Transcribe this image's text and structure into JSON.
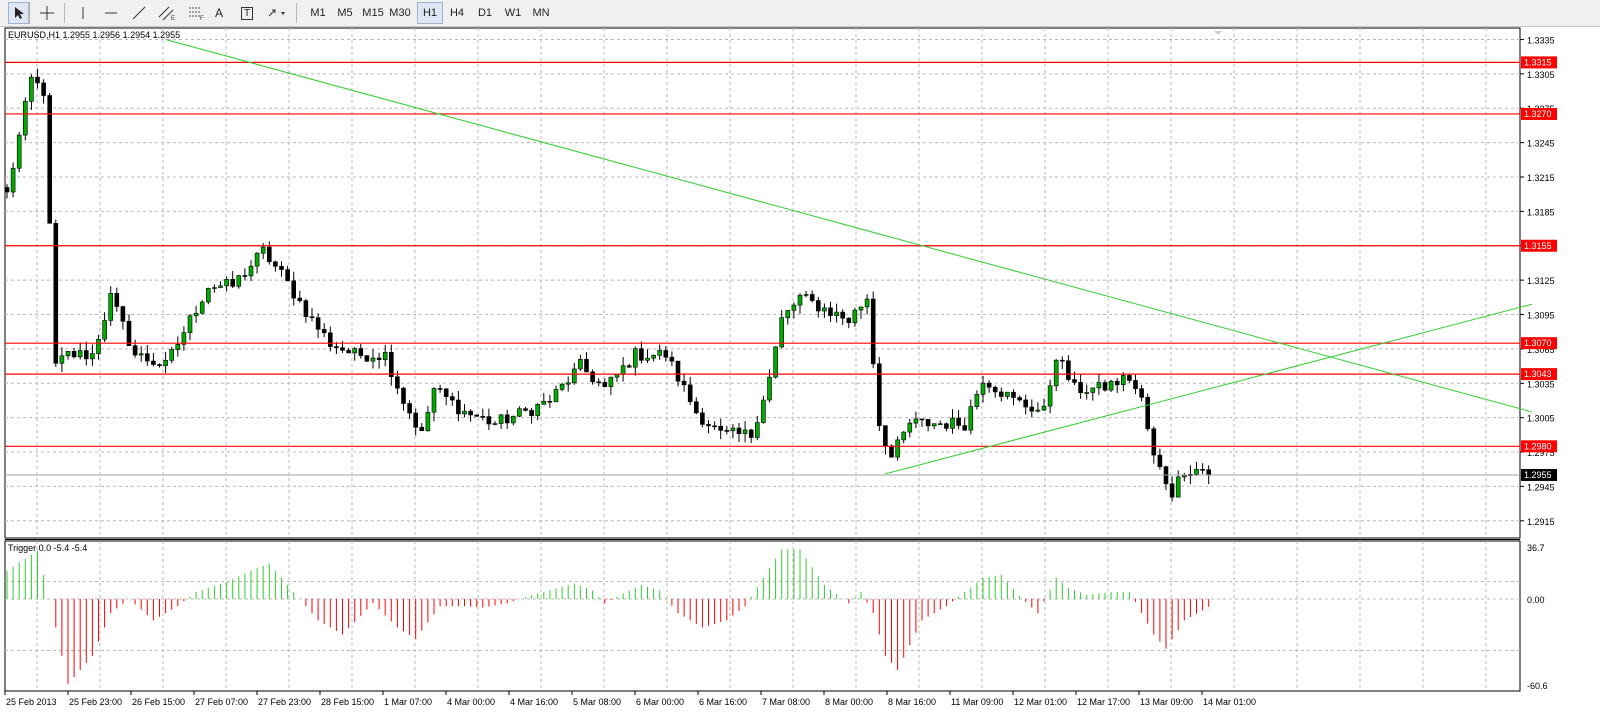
{
  "toolbar": {
    "tools": [
      {
        "name": "cursor-icon",
        "glyph": ""
      },
      {
        "name": "crosshair-icon",
        "glyph": ""
      },
      {
        "name": "vertical-line-icon",
        "glyph": ""
      },
      {
        "name": "horizontal-line-icon",
        "glyph": ""
      },
      {
        "name": "trendline-icon",
        "glyph": ""
      },
      {
        "name": "equidistant-channel-icon",
        "glyph": ""
      },
      {
        "name": "fibonacci-retracement-icon",
        "glyph": ""
      },
      {
        "name": "text-icon",
        "glyph": "A"
      },
      {
        "name": "text-label-icon",
        "glyph": "T"
      },
      {
        "name": "arrows-dropdown-icon",
        "glyph": ""
      }
    ],
    "timeframes": [
      "M1",
      "M5",
      "M15",
      "M30",
      "H1",
      "H4",
      "D1",
      "W1",
      "MN"
    ],
    "active_timeframe": "H1"
  },
  "colors": {
    "bull": "#00ff00",
    "bear": "#ff0000",
    "hline": "#ff0000",
    "trend": "#32cd32",
    "osc_pos": "#32cd32",
    "osc_neg": "#ff0000",
    "price_tag": "#000000"
  },
  "chart_data": [
    {
      "type": "candlestick",
      "title": "EURUSD,H1  1.2955 1.2956 1.2954 1.2955",
      "ylim": [
        1.29,
        1.3345
      ],
      "y_ticks": [
        "1.3335",
        "1.3305",
        "1.3275",
        "1.3245",
        "1.3215",
        "1.3185",
        "1.3155",
        "1.3125",
        "1.3095",
        "1.3065",
        "1.3035",
        "1.3005",
        "1.2975",
        "1.2945",
        "1.2915"
      ],
      "x_ticks": [
        "25 Feb 2013",
        "25 Feb 23:00",
        "26 Feb 15:00",
        "27 Feb 07:00",
        "27 Feb 23:00",
        "28 Feb 15:00",
        "1 Mar 07:00",
        "4 Mar 00:00",
        "4 Mar 16:00",
        "5 Mar 08:00",
        "6 Mar 00:00",
        "6 Mar 16:00",
        "7 Mar 08:00",
        "8 Mar 00:00",
        "8 Mar 16:00",
        "11 Mar 09:00",
        "12 Mar 01:00",
        "12 Mar 17:00",
        "13 Mar 09:00",
        "14 Mar 01:00"
      ],
      "bars_shown": 198,
      "current_price": "1.2955",
      "horizontal_levels": [
        "1.3315",
        "1.3270",
        "1.3155",
        "1.3070",
        "1.3043",
        "1.2980"
      ],
      "trendlines": [
        {
          "from": [
            26,
            1.3335
          ],
          "to": [
            250,
            1.301
          ]
        },
        {
          "from": [
            144,
            1.2956
          ],
          "to": [
            250,
            1.3104
          ]
        }
      ],
      "close_anchors": [
        [
          0,
          1.32
        ],
        [
          4,
          1.33
        ],
        [
          6,
          1.329
        ],
        [
          8,
          1.305
        ],
        [
          10,
          1.306
        ],
        [
          14,
          1.306
        ],
        [
          17,
          1.311
        ],
        [
          21,
          1.306
        ],
        [
          26,
          1.305
        ],
        [
          33,
          1.312
        ],
        [
          37,
          1.312
        ],
        [
          42,
          1.315
        ],
        [
          45,
          1.313
        ],
        [
          50,
          1.309
        ],
        [
          53,
          1.307
        ],
        [
          57,
          1.306
        ],
        [
          62,
          1.306
        ],
        [
          65,
          1.302
        ],
        [
          68,
          1.299
        ],
        [
          70,
          1.303
        ],
        [
          75,
          1.301
        ],
        [
          80,
          1.3
        ],
        [
          85,
          1.301
        ],
        [
          89,
          1.302
        ],
        [
          94,
          1.305
        ],
        [
          98,
          1.303
        ],
        [
          103,
          1.306
        ],
        [
          108,
          1.306
        ],
        [
          113,
          1.301
        ],
        [
          117,
          1.299
        ],
        [
          122,
          1.299
        ],
        [
          125,
          1.304
        ],
        [
          127,
          1.309
        ],
        [
          130,
          1.311
        ],
        [
          134,
          1.31
        ],
        [
          138,
          1.309
        ],
        [
          141,
          1.311
        ],
        [
          143,
          1.3
        ],
        [
          145,
          1.297
        ],
        [
          148,
          1.3
        ],
        [
          152,
          1.3
        ],
        [
          157,
          1.3
        ],
        [
          160,
          1.304
        ],
        [
          165,
          1.302
        ],
        [
          170,
          1.301
        ],
        [
          172,
          1.306
        ],
        [
          175,
          1.303
        ],
        [
          179,
          1.303
        ],
        [
          184,
          1.304
        ],
        [
          186,
          1.302
        ],
        [
          188,
          1.297
        ],
        [
          191,
          1.294
        ],
        [
          193,
          1.296
        ],
        [
          196,
          1.296
        ],
        [
          197,
          1.2955
        ]
      ]
    },
    {
      "type": "histogram",
      "title": "Trigger 0.0 -5.4 -5.4",
      "ylim": [
        -60.6,
        36.7
      ],
      "y_ticks": [
        "36.7",
        "0.00",
        "-60.6"
      ],
      "anchors": [
        [
          0,
          20
        ],
        [
          5,
          34
        ],
        [
          7,
          0
        ],
        [
          10,
          -60
        ],
        [
          14,
          -40
        ],
        [
          17,
          -10
        ],
        [
          20,
          0
        ],
        [
          24,
          -15
        ],
        [
          28,
          -5
        ],
        [
          31,
          5
        ],
        [
          36,
          12
        ],
        [
          40,
          20
        ],
        [
          43,
          25
        ],
        [
          47,
          5
        ],
        [
          51,
          -15
        ],
        [
          55,
          -25
        ],
        [
          60,
          -3
        ],
        [
          64,
          -20
        ],
        [
          67,
          -28
        ],
        [
          71,
          -5
        ],
        [
          75,
          -5
        ],
        [
          78,
          -6
        ],
        [
          82,
          -3
        ],
        [
          87,
          4
        ],
        [
          93,
          11
        ],
        [
          96,
          6
        ],
        [
          98,
          -3
        ],
        [
          101,
          4
        ],
        [
          104,
          10
        ],
        [
          107,
          6
        ],
        [
          110,
          -10
        ],
        [
          114,
          -20
        ],
        [
          118,
          -15
        ],
        [
          121,
          -5
        ],
        [
          124,
          15
        ],
        [
          127,
          35
        ],
        [
          130,
          35
        ],
        [
          134,
          10
        ],
        [
          138,
          -3
        ],
        [
          140,
          5
        ],
        [
          142,
          -10
        ],
        [
          144,
          -40
        ],
        [
          146,
          -50
        ],
        [
          150,
          -15
        ],
        [
          154,
          -5
        ],
        [
          157,
          5
        ],
        [
          160,
          15
        ],
        [
          163,
          17
        ],
        [
          166,
          2
        ],
        [
          169,
          -10
        ],
        [
          172,
          15
        ],
        [
          174,
          8
        ],
        [
          177,
          3
        ],
        [
          181,
          5
        ],
        [
          184,
          5
        ],
        [
          185,
          -2
        ],
        [
          188,
          -25
        ],
        [
          190,
          -35
        ],
        [
          193,
          -15
        ],
        [
          196,
          -8
        ],
        [
          197,
          -5.4
        ]
      ]
    }
  ]
}
